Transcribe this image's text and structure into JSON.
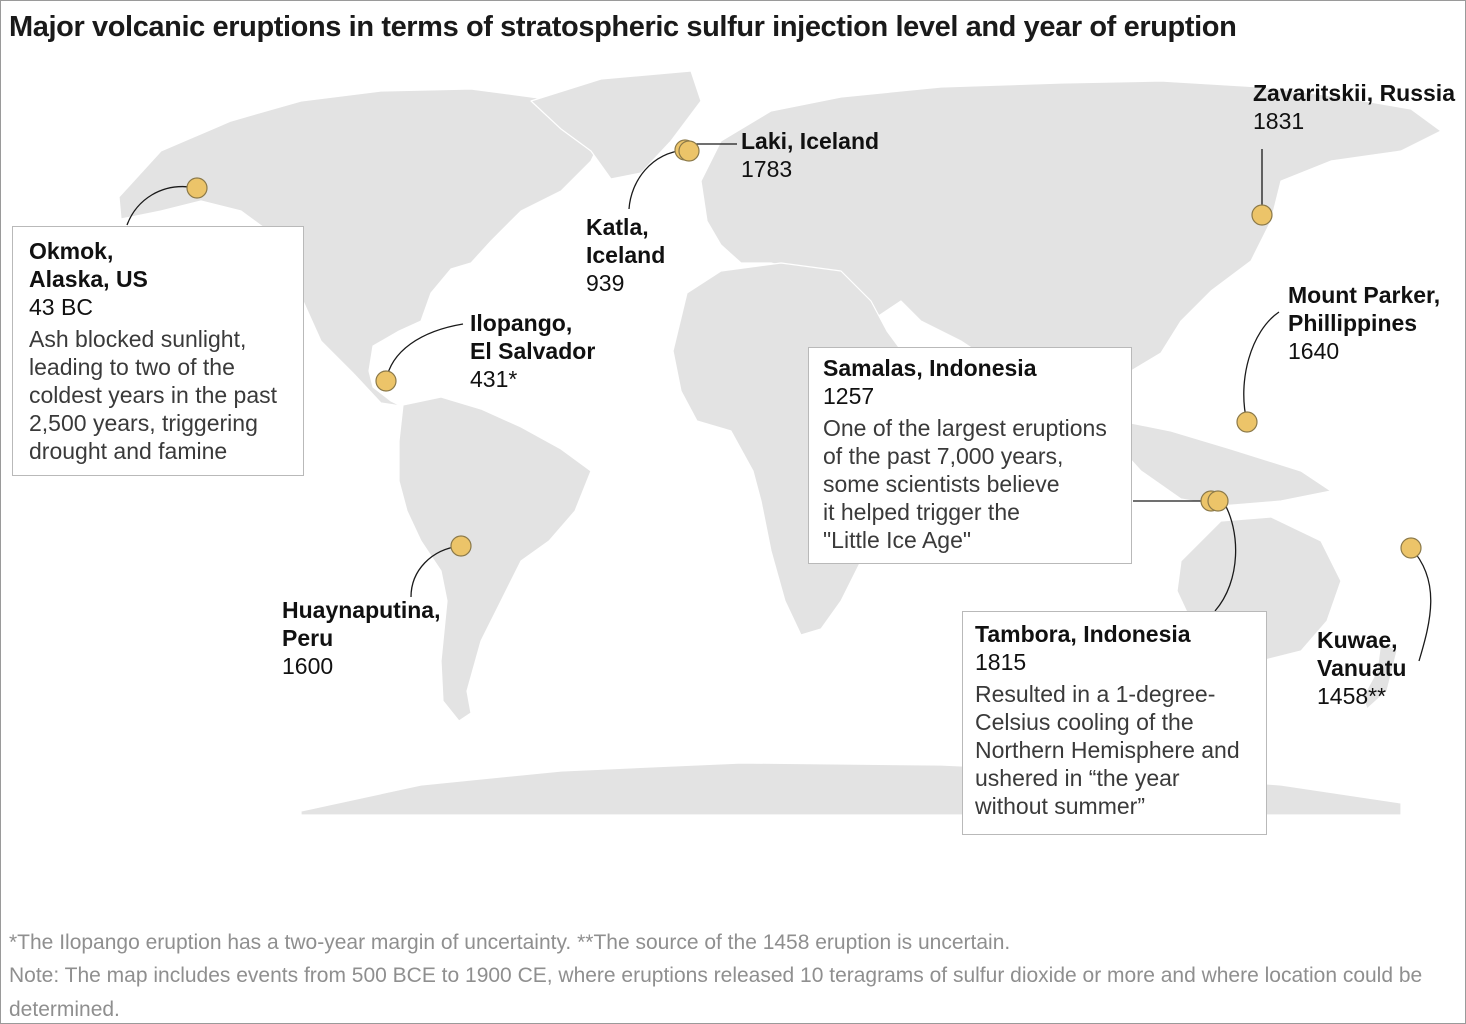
{
  "title": "Major volcanic eruptions in terms of stratospheric sulfur injection level and year of eruption",
  "colors": {
    "marker": "#ecc469",
    "land": "#e3e3e3",
    "text": "#111111",
    "footnote": "#8f8f8f",
    "box_border": "#b9b9b9"
  },
  "eruptions": [
    {
      "id": "okmok",
      "name": "Okmok,\nAlaska, US",
      "year": "43 BC",
      "description": "Ash blocked sunlight,\nleading to two of the\ncoldest years in the past\n2,500 years, triggering\ndrought and famine"
    },
    {
      "id": "laki",
      "name": "Laki, Iceland",
      "year": "1783"
    },
    {
      "id": "katla",
      "name": "Katla,\nIceland",
      "year": "939"
    },
    {
      "id": "zavaritskii",
      "name": "Zavaritskii, Russia",
      "year": "1831"
    },
    {
      "id": "ilopango",
      "name": "Ilopango,\nEl Salvador",
      "year": "431*"
    },
    {
      "id": "mount_parker",
      "name": "Mount Parker,\nPhillippines",
      "year": "1640"
    },
    {
      "id": "samalas",
      "name": "Samalas, Indonesia",
      "year": "1257",
      "description": "One of the largest eruptions\nof the past 7,000 years,\nsome scientists believe\nit helped trigger the\n\"Little Ice Age\""
    },
    {
      "id": "huaynaputina",
      "name": "Huaynaputina,\nPeru",
      "year": "1600"
    },
    {
      "id": "tambora",
      "name": "Tambora, Indonesia",
      "year": "1815",
      "description": "Resulted in a 1-degree-\nCelsius cooling of the\nNorthern Hemisphere and\nushered in “the year\nwithout summer”"
    },
    {
      "id": "kuwae",
      "name": "Kuwae,\nVanuatu",
      "year": "1458**"
    }
  ],
  "footnotes": [
    "*The Ilopango eruption has a two-year margin of uncertainty. **The source of the 1458 eruption is uncertain.",
    "Note: The map includes events from 500 BCE to 1900 CE, where eruptions released 10 teragrams of sulfur dioxide or more and where location could be determined."
  ]
}
